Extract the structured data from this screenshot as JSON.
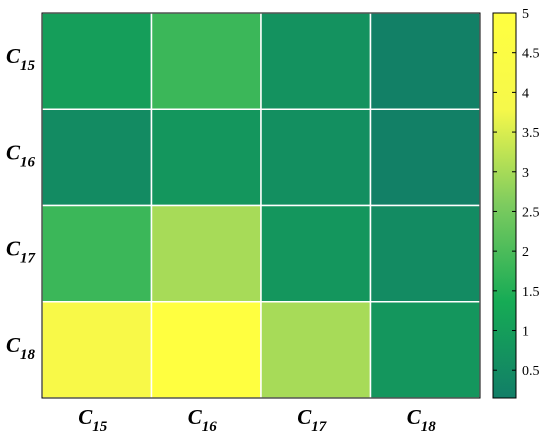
{
  "chart_data": {
    "type": "heatmap",
    "title": "",
    "xlabel": "",
    "ylabel": "",
    "x_categories": [
      {
        "base": "C",
        "sub": "15"
      },
      {
        "base": "C",
        "sub": "16"
      },
      {
        "base": "C",
        "sub": "17"
      },
      {
        "base": "C",
        "sub": "18"
      }
    ],
    "y_categories": [
      {
        "base": "C",
        "sub": "15"
      },
      {
        "base": "C",
        "sub": "16"
      },
      {
        "base": "C",
        "sub": "17"
      },
      {
        "base": "C",
        "sub": "18"
      }
    ],
    "values": [
      [
        1.0,
        1.8,
        0.7,
        0.2
      ],
      [
        0.5,
        0.8,
        0.6,
        0.2
      ],
      [
        1.8,
        3.0,
        0.8,
        0.5
      ],
      [
        4.0,
        5.0,
        3.0,
        0.8
      ]
    ],
    "colorbar": {
      "range": [
        0.15,
        5
      ],
      "ticks": [
        0.5,
        1,
        1.5,
        2,
        2.5,
        3,
        3.5,
        4,
        4.5,
        5
      ],
      "tick_labels": [
        "0.5",
        "1",
        "1.5",
        "2",
        "2.5",
        "3",
        "3.5",
        "4",
        "4.5",
        "5"
      ],
      "colormap": [
        "#127e67",
        "#16ab55",
        "#7ccb5f",
        "#f6f84a",
        "#ffff40"
      ]
    },
    "grid": true,
    "legend": "right"
  }
}
